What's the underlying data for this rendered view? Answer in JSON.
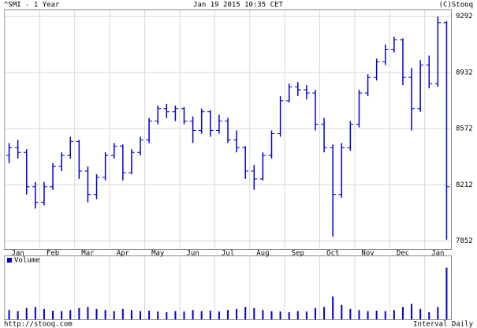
{
  "chart_data": {
    "type": "ohlc",
    "title": "^SMI - 1 Year",
    "subtitle": "Jan 19 2015 10:35 CET",
    "source": "(C)Stooq",
    "url": "http://stooq.com",
    "interval": "Interval Daily",
    "color": "#0000cc",
    "grid": true,
    "categories": [
      null,
      "Jan",
      null,
      null,
      null,
      "Feb",
      null,
      null,
      null,
      "Mar",
      null,
      null,
      null,
      "Apr",
      null,
      null,
      null,
      "May",
      null,
      null,
      null,
      "Jun",
      null,
      null,
      null,
      "Jul",
      null,
      null,
      null,
      "Aug",
      null,
      null,
      null,
      "Sep",
      null,
      null,
      null,
      "Oct",
      null,
      null,
      null,
      "Nov",
      null,
      null,
      null,
      "Dec",
      null,
      null,
      null,
      "Jan",
      null
    ],
    "open": [
      8400,
      8450,
      8420,
      8200,
      8100,
      8200,
      8330,
      8400,
      8490,
      8300,
      8150,
      8260,
      8400,
      8460,
      8290,
      8420,
      8500,
      8620,
      8700,
      8680,
      8700,
      8620,
      8560,
      8680,
      8560,
      8620,
      8500,
      8450,
      8300,
      8250,
      8400,
      8540,
      8750,
      8840,
      8820,
      8800,
      8600,
      8450,
      8150,
      8450,
      8600,
      8800,
      8900,
      9000,
      9080,
      9140,
      8900,
      8700,
      8980,
      8860,
      9250
    ],
    "high": [
      8480,
      8500,
      8440,
      8230,
      8230,
      8350,
      8420,
      8520,
      8500,
      8330,
      8280,
      8420,
      8480,
      8470,
      8440,
      8520,
      8640,
      8720,
      8730,
      8720,
      8710,
      8650,
      8700,
      8690,
      8660,
      8640,
      8560,
      8460,
      8340,
      8420,
      8560,
      8780,
      8860,
      8870,
      8850,
      8820,
      8640,
      8470,
      8480,
      8620,
      8820,
      8920,
      9020,
      9110,
      9160,
      9150,
      8960,
      9010,
      9040,
      9290,
      9260
    ],
    "low": [
      8350,
      8380,
      8150,
      8060,
      8080,
      8180,
      8300,
      8380,
      8250,
      8100,
      8120,
      8240,
      8380,
      8240,
      8280,
      8400,
      8480,
      8600,
      8640,
      8620,
      8600,
      8480,
      8540,
      8520,
      8540,
      8480,
      8420,
      8250,
      8180,
      8240,
      8380,
      8520,
      8740,
      8780,
      8760,
      8560,
      8420,
      7880,
      8130,
      8430,
      8580,
      8780,
      8880,
      8980,
      9060,
      8850,
      8560,
      8680,
      8830,
      8840,
      7860
    ],
    "close": [
      8450,
      8420,
      8200,
      8100,
      8200,
      8330,
      8400,
      8490,
      8300,
      8150,
      8260,
      8400,
      8460,
      8290,
      8420,
      8500,
      8620,
      8700,
      8680,
      8700,
      8620,
      8560,
      8680,
      8560,
      8620,
      8500,
      8450,
      8300,
      8250,
      8400,
      8540,
      8750,
      8840,
      8820,
      8800,
      8600,
      8450,
      8150,
      8450,
      8600,
      8800,
      8900,
      9000,
      9080,
      9140,
      8900,
      8700,
      8980,
      8860,
      9250,
      8200
    ],
    "ylim": [
      7800,
      9330
    ],
    "yticks": [
      7852,
      8212,
      8572,
      8932,
      9292
    ],
    "volume": {
      "name": "Volume",
      "color": "#0000cc",
      "ylim": [
        0,
        260
      ],
      "values": [
        45,
        40,
        55,
        60,
        50,
        42,
        40,
        45,
        55,
        60,
        50,
        45,
        40,
        50,
        45,
        40,
        42,
        38,
        35,
        40,
        38,
        45,
        40,
        42,
        38,
        45,
        50,
        60,
        55,
        45,
        40,
        38,
        35,
        40,
        38,
        55,
        60,
        110,
        70,
        50,
        45,
        40,
        42,
        40,
        45,
        60,
        75,
        50,
        35,
        60,
        250
      ]
    }
  }
}
